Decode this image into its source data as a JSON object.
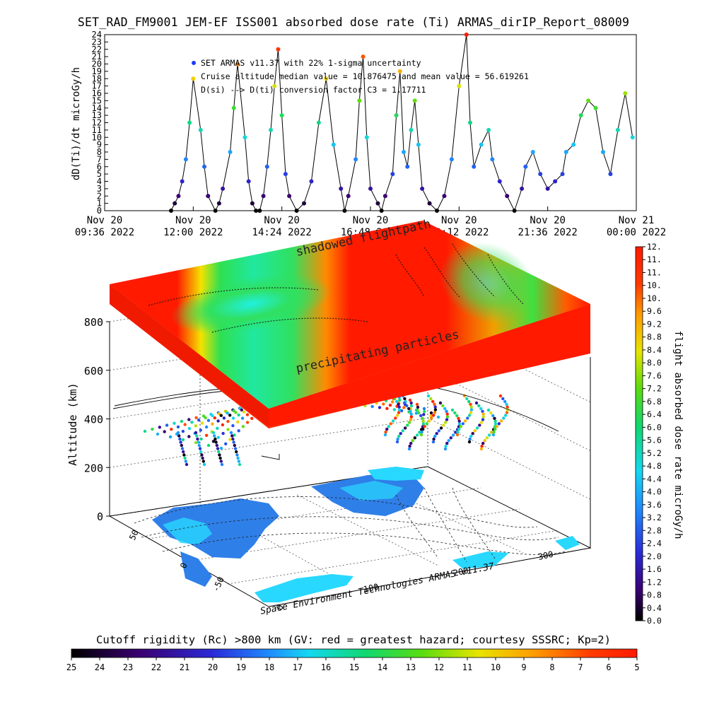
{
  "title": "SET_RAD_FM9001  JEM-EF ISS001 absorbed dose rate (Ti) ARMAS_dirIP_Report_08009",
  "chart_data": [
    {
      "type": "scatter",
      "mode": "line+markers",
      "ylabel": "dD(Ti)/dt microGy/h",
      "ylim": [
        0,
        24
      ],
      "yticks": [
        0,
        1,
        2,
        3,
        4,
        5,
        6,
        7,
        8,
        9,
        10,
        11,
        12,
        13,
        14,
        15,
        16,
        17,
        18,
        19,
        20,
        21,
        22,
        23,
        24
      ],
      "xtick_labels": [
        {
          "line1": "Nov 20",
          "line2": "09:36 2022"
        },
        {
          "line1": "Nov 20",
          "line2": "12:00 2022"
        },
        {
          "line1": "Nov 20",
          "line2": "14:24 2022"
        },
        {
          "line1": "Nov 20",
          "line2": "16:48 2022"
        },
        {
          "line1": "Nov 20",
          "line2": "19:12 2022"
        },
        {
          "line1": "Nov 20",
          "line2": "21:36 2022"
        },
        {
          "line1": "Nov 21",
          "line2": "00:00 2022"
        }
      ],
      "x_hours": [
        11.4,
        11.5,
        11.6,
        11.7,
        11.8,
        11.9,
        12.0,
        12.2,
        12.3,
        12.4,
        12.6,
        12.7,
        12.8,
        13.0,
        13.1,
        13.2,
        13.4,
        13.5,
        13.6,
        13.7,
        13.8,
        13.9,
        14.0,
        14.1,
        14.2,
        14.3,
        14.4,
        14.5,
        14.6,
        14.8,
        15.0,
        15.2,
        15.4,
        15.6,
        15.8,
        16.0,
        16.1,
        16.2,
        16.4,
        16.5,
        16.6,
        16.7,
        16.8,
        17.0,
        17.1,
        17.2,
        17.4,
        17.5,
        17.6,
        17.7,
        17.8,
        17.9,
        18.0,
        18.1,
        18.2,
        18.4,
        18.6,
        18.8,
        19.0,
        19.2,
        19.4,
        19.5,
        19.6,
        19.8,
        20.0,
        20.1,
        20.3,
        20.5,
        20.7,
        20.9,
        21.0,
        21.2,
        21.4,
        21.6,
        21.8,
        22.0,
        22.1,
        22.3,
        22.5,
        22.7,
        22.9,
        23.1,
        23.3,
        23.5,
        23.7,
        23.9
      ],
      "y_values": [
        0,
        1,
        2,
        4,
        7,
        12,
        18,
        11,
        6,
        2,
        0,
        1,
        3,
        8,
        14,
        20,
        10,
        4,
        1,
        0,
        0,
        2,
        6,
        11,
        17,
        22,
        13,
        5,
        2,
        0,
        1,
        4,
        12,
        18,
        9,
        3,
        0,
        2,
        7,
        15,
        21,
        10,
        3,
        1,
        0,
        2,
        5,
        13,
        19,
        8,
        6,
        11,
        15,
        9,
        3,
        1,
        0,
        2,
        7,
        17,
        24,
        12,
        6,
        9,
        11,
        7,
        4,
        2,
        0,
        3,
        6,
        8,
        5,
        3,
        4,
        5,
        8,
        9,
        13,
        15,
        14,
        8,
        5,
        11,
        16,
        10
      ],
      "annotations": [
        "SET ARMAS v11.37 with 22% 1-sigma uncertainty",
        "Cruise altitude median value = 10.876475 and mean value = 56.619261",
        "D(si) --> D(ti) conversion factor C3 = 1.17711"
      ],
      "grid": false
    },
    {
      "type": "heatmap",
      "subtype": "3d-orbit-map",
      "zlabel": "Altitude (km)",
      "zticks": [
        0,
        200,
        400,
        600,
        800
      ],
      "lon_ticks": [
        100,
        200,
        300
      ],
      "lat_ticks": [
        50,
        0,
        -50
      ],
      "plane_labels": [
        "shadowed flightpath",
        "precipitating particles"
      ],
      "grid": true
    }
  ],
  "dose_colorbar": {
    "label": "flight absorbed dose rate microGy/h",
    "ticks": [
      "0.0",
      "0.4",
      "0.8",
      "1.2",
      "1.6",
      "2.0",
      "2.4",
      "2.8",
      "3.2",
      "3.6",
      "4.0",
      "4.4",
      "4.8",
      "5.2",
      "5.6",
      "6.0",
      "6.4",
      "6.8",
      "7.2",
      "7.6",
      "8.0",
      "8.4",
      "8.8",
      "9.2",
      "9.6",
      "10.",
      "10.",
      "11.",
      "11.",
      "12."
    ]
  },
  "rigidity_colorbar": {
    "label": "Cutoff rigidity (Rc) >800 km (GV: red = greatest hazard; courtesy SSSRC; Kp=2)",
    "ticks": [
      "25",
      "24",
      "23",
      "22",
      "21",
      "20",
      "19",
      "18",
      "17",
      "16",
      "15",
      "14",
      "13",
      "12",
      "11",
      "10",
      "9",
      "8",
      "7",
      "6",
      "5"
    ]
  },
  "credit": "Space Environment Technologies ARMAS v11.37",
  "colors": {
    "accent_red": "#ff1a00",
    "ocean_cyan": "#28d8ff",
    "land_blue": "#2f7fe8",
    "legend_marker": "#1a3cff"
  }
}
